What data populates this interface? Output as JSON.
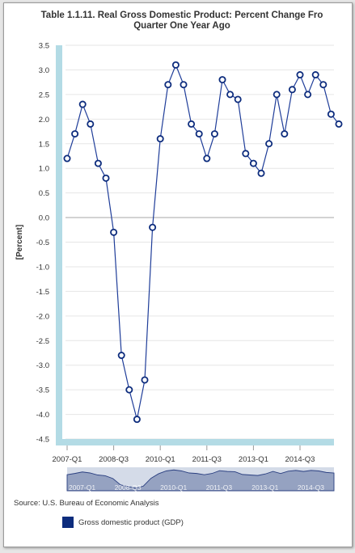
{
  "chart_data": {
    "type": "line",
    "title_line1": "Table 1.1.11. Real Gross Domestic Product: Percent Change Fro",
    "title_line2": "Quarter One Year Ago",
    "ylabel": "[Percent]",
    "ylim": [
      -4.5,
      3.5
    ],
    "yticks": [
      "3.5",
      "3.0",
      "2.5",
      "2.0",
      "1.5",
      "1.0",
      "0.5",
      "0.0",
      "-0.5",
      "-1.0",
      "-1.5",
      "-2.0",
      "-2.5",
      "-3.0",
      "-3.5",
      "-4.0",
      "-4.5"
    ],
    "xtick_labels": [
      "2007-Q1",
      "2008-Q3",
      "2010-Q1",
      "2011-Q3",
      "2013-Q1",
      "2014-Q3"
    ],
    "navigator_labels": [
      "2007-Q1",
      "2008-Q3",
      "2010-Q1",
      "2011-Q3",
      "2013-Q1",
      "2014-Q3"
    ],
    "grid": true,
    "legend_position": "bottom",
    "series": [
      {
        "name": "Gross domestic product (GDP)",
        "color": "#1f3d99",
        "values": [
          1.2,
          1.7,
          2.3,
          1.9,
          1.1,
          0.8,
          -0.3,
          -2.8,
          -3.5,
          -4.1,
          -3.3,
          -0.2,
          1.6,
          2.7,
          3.1,
          2.7,
          1.9,
          1.7,
          1.2,
          1.7,
          2.8,
          2.5,
          2.4,
          1.3,
          1.1,
          0.9,
          1.5,
          2.5,
          1.7,
          2.6,
          2.9,
          2.5,
          2.9,
          2.7,
          2.1,
          1.9
        ]
      }
    ]
  },
  "source": "Source: U.S. Bureau of Economic Analysis",
  "legend": {
    "label": "Gross domestic product (GDP)",
    "color": "#0d2c7d"
  }
}
